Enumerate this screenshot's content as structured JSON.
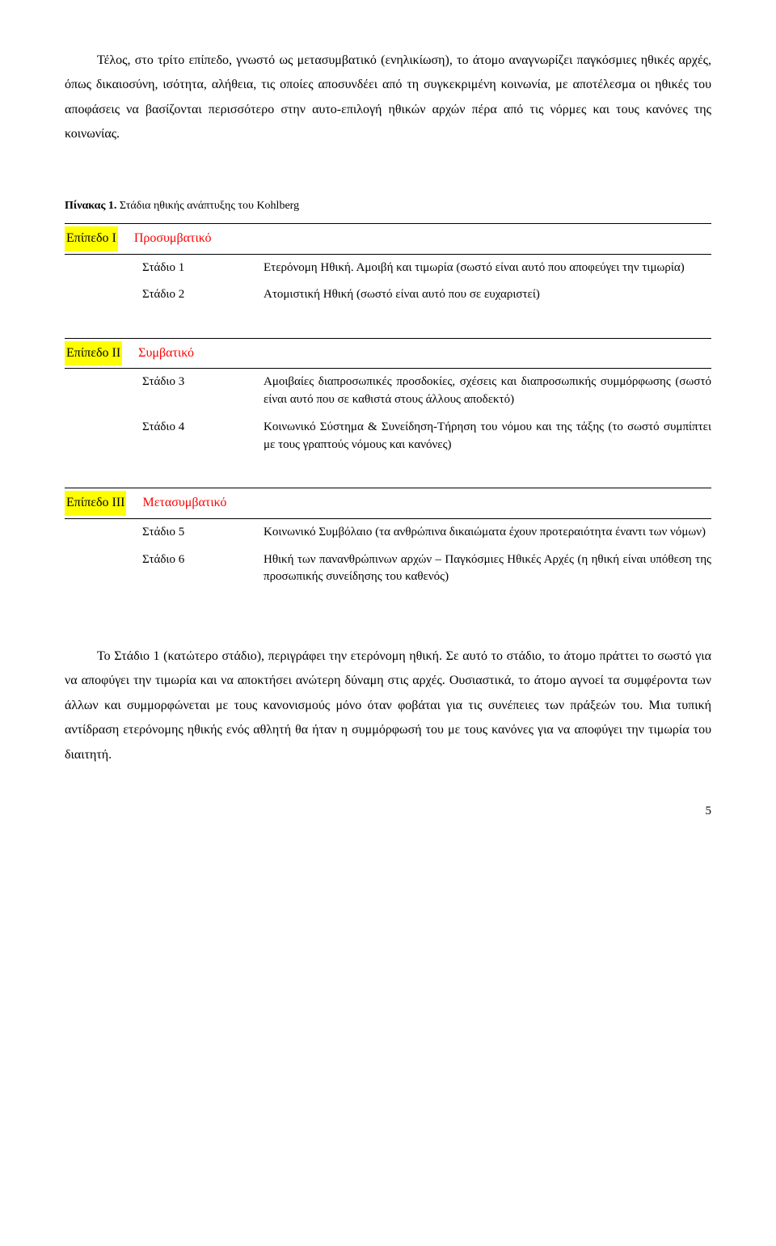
{
  "paragraph1": "Τέλος, στο τρίτο επίπεδο, γνωστό ως μετασυμβατικό (ενηλικίωση), το άτομο αναγνωρίζει παγκόσμιες ηθικές αρχές, όπως δικαιοσύνη, ισότητα, αλήθεια, τις οποίες αποσυνδέει από τη συγκεκριμένη κοινωνία, με αποτέλεσμα οι ηθικές του αποφάσεις να βασίζονται περισσότερο στην αυτο-επιλογή ηθικών αρχών πέρα από τις νόρμες και τους κανόνες της κοινωνίας.",
  "caption_bold": "Πίνακας 1.",
  "caption_rest": " Στάδια ηθικής ανάπτυξης του Kohlberg",
  "levels": [
    {
      "label": "Επίπεδο Ι",
      "name": "Προσυμβατικό",
      "stages": [
        {
          "label": "Στάδιο 1",
          "desc": "Ετερόνομη Ηθική. Αμοιβή και τιμωρία (σωστό είναι αυτό που αποφεύγει την τιμωρία)"
        },
        {
          "label": "Στάδιο 2",
          "desc": "Ατομιστική Ηθική (σωστό είναι αυτό που σε ευχαριστεί)"
        }
      ]
    },
    {
      "label": "Επίπεδο ΙΙ",
      "name": "Συμβατικό",
      "stages": [
        {
          "label": "Στάδιο 3",
          "desc": "Αμοιβαίες διαπροσωπικές προσδοκίες, σχέσεις και διαπροσωπικής συμμόρφωσης (σωστό είναι αυτό που σε καθιστά στους άλλους αποδεκτό)"
        },
        {
          "label": "Στάδιο 4",
          "desc": "Κοινωνικό Σύστημα & Συνείδηση-Τήρηση του νόμου και της τάξης (το σωστό συμπίπτει με τους γραπτούς νόμους και κανόνες)"
        }
      ]
    },
    {
      "label": "Επίπεδο ΙΙΙ",
      "name": "Μετασυμβατικό",
      "stages": [
        {
          "label": "Στάδιο 5",
          "desc": "Κοινωνικό Συμβόλαιο (τα ανθρώπινα δικαιώματα έχουν προτεραιότητα έναντι των νόμων)"
        },
        {
          "label": "Στάδιο 6",
          "desc": "Ηθική των πανανθρώπινων αρχών – Παγκόσμιες Ηθικές Αρχές (η ηθική είναι υπόθεση της προσωπικής συνείδησης του καθενός)"
        }
      ]
    }
  ],
  "paragraph2": "Το Στάδιο 1 (κατώτερο στάδιο), περιγράφει την ετερόνομη ηθική. Σε αυτό το στάδιο, το άτομο πράττει το σωστό για να αποφύγει την τιμωρία και να αποκτήσει ανώτερη δύναμη στις αρχές. Ουσιαστικά, το άτομο αγνοεί τα συμφέροντα των άλλων και συμμορφώνεται με τους κανονισμούς μόνο όταν φοβάται για τις συνέπειες των πράξεών του. Μια τυπική αντίδραση ετερόνομης ηθικής ενός αθλητή θα ήταν η συμμόρφωσή του με τους κανόνες για να αποφύγει την τιμωρία του διαιτητή.",
  "page_number": "5"
}
